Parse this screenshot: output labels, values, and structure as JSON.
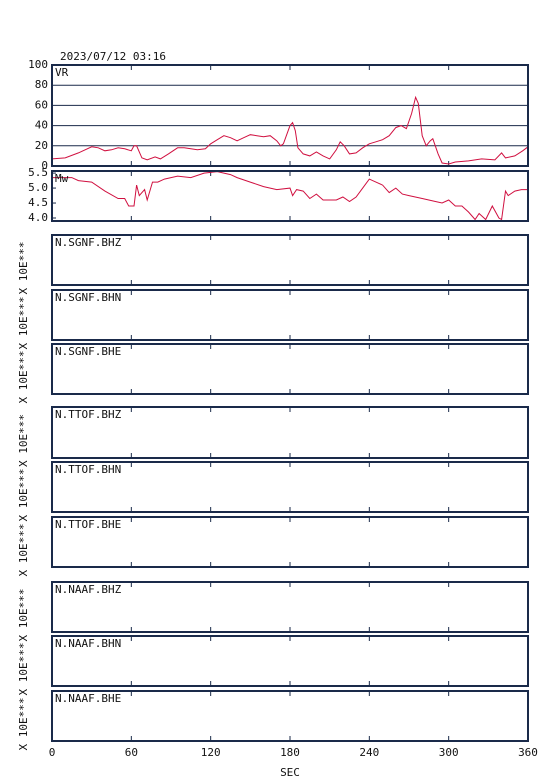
{
  "chart_data": [
    {
      "type": "line",
      "title": "2023/07/12 03:16",
      "label": "VR",
      "color": "#d01040",
      "grid": true,
      "ylim": [
        0,
        100
      ],
      "yticks": [
        0,
        20,
        40,
        60,
        80,
        100
      ],
      "x": [
        0,
        10,
        20,
        30,
        35,
        40,
        45,
        50,
        55,
        60,
        62,
        64,
        68,
        72,
        78,
        82,
        88,
        95,
        100,
        105,
        110,
        116,
        120,
        125,
        130,
        135,
        140,
        145,
        150,
        155,
        160,
        165,
        170,
        173,
        175,
        180,
        182,
        184,
        186,
        190,
        195,
        200,
        205,
        210,
        215,
        218,
        221,
        225,
        230,
        235,
        240,
        245,
        250,
        255,
        260,
        264,
        268,
        272,
        275,
        277,
        280,
        283,
        286,
        288,
        292,
        295,
        300,
        305,
        315,
        325,
        335,
        340,
        343,
        350,
        356,
        360
      ],
      "values": [
        7,
        8,
        13,
        19,
        18,
        15,
        16,
        18,
        17,
        15,
        20,
        20,
        8,
        6,
        9,
        7,
        12,
        18,
        18,
        17,
        16,
        17,
        22,
        26,
        30,
        28,
        25,
        28,
        31,
        30,
        29,
        30,
        25,
        20,
        22,
        40,
        43,
        35,
        18,
        12,
        10,
        14,
        10,
        7,
        16,
        24,
        20,
        12,
        13,
        18,
        22,
        24,
        26,
        30,
        38,
        40,
        37,
        52,
        68,
        62,
        30,
        20,
        25,
        27,
        12,
        3,
        2,
        4,
        5,
        7,
        6,
        13,
        8,
        10,
        15,
        19
      ]
    },
    {
      "type": "line",
      "label": "Mw",
      "color": "#d01040",
      "grid": false,
      "ylim": [
        3.9,
        5.57
      ],
      "yticks": [
        {
          "value": 4,
          "label": "4.0"
        },
        4.5,
        {
          "value": 5,
          "label": "5.0"
        },
        5.5
      ],
      "x": [
        0,
        15,
        20,
        30,
        40,
        50,
        55,
        58,
        62,
        64,
        66,
        70,
        72,
        76,
        80,
        85,
        95,
        105,
        115,
        125,
        130,
        135,
        140,
        150,
        160,
        170,
        180,
        182,
        185,
        190,
        195,
        200,
        205,
        215,
        220,
        225,
        230,
        235,
        240,
        245,
        250,
        255,
        260,
        265,
        270,
        280,
        290,
        295,
        300,
        305,
        310,
        315,
        320,
        323,
        328,
        333,
        338,
        340,
        343,
        345,
        350,
        355,
        360
      ],
      "values": [
        5.35,
        5.35,
        5.25,
        5.2,
        4.9,
        4.65,
        4.65,
        4.4,
        4.4,
        5.1,
        4.75,
        4.95,
        4.6,
        5.2,
        5.2,
        5.3,
        5.4,
        5.35,
        5.5,
        5.55,
        5.5,
        5.45,
        5.35,
        5.2,
        5.05,
        4.95,
        5.0,
        4.75,
        4.95,
        4.9,
        4.65,
        4.8,
        4.6,
        4.6,
        4.7,
        4.55,
        4.7,
        5.0,
        5.3,
        5.2,
        5.1,
        4.85,
        5.0,
        4.8,
        4.75,
        4.65,
        4.55,
        4.5,
        4.6,
        4.4,
        4.4,
        4.2,
        3.95,
        4.15,
        3.95,
        4.4,
        4.0,
        3.95,
        4.9,
        4.75,
        4.9,
        4.95,
        4.95
      ]
    },
    {
      "type": "empty",
      "label": "N.SGNF.BHZ",
      "y_label": "X 10E***"
    },
    {
      "type": "empty",
      "label": "N.SGNF.BHN",
      "y_label": "X 10E***"
    },
    {
      "type": "empty",
      "label": "N.SGNF.BHE",
      "y_label": "X 10E***"
    },
    {
      "type": "empty",
      "label": "N.TTOF.BHZ",
      "y_label": "X 10E***"
    },
    {
      "type": "empty",
      "label": "N.TTOF.BHN",
      "y_label": "X 10E***"
    },
    {
      "type": "empty",
      "label": "N.TTOF.BHE",
      "y_label": "X 10E***"
    },
    {
      "type": "empty",
      "label": "N.NAAF.BHZ",
      "y_label": "X 10E***"
    },
    {
      "type": "empty",
      "label": "N.NAAF.BHN",
      "y_label": "X 10E***"
    },
    {
      "type": "empty",
      "label": "N.NAAF.BHE",
      "y_label": "X 10E***",
      "x_label": "SEC",
      "xlim": [
        0,
        360
      ],
      "xticks": [
        0,
        60,
        120,
        180,
        240,
        300,
        360
      ]
    }
  ]
}
